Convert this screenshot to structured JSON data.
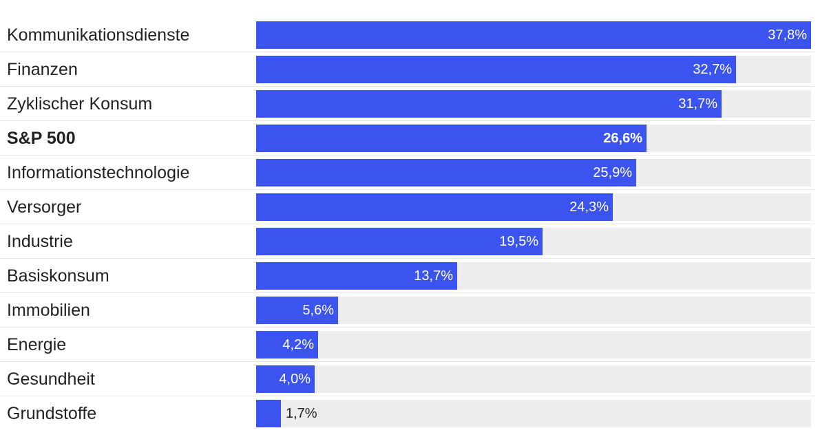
{
  "chart_data": {
    "type": "bar",
    "orientation": "horizontal",
    "categories": [
      "Kommunikationsdienste",
      "Finanzen",
      "Zyklischer Konsum",
      "S&P 500",
      "Informationstechnologie",
      "Versorger",
      "Industrie",
      "Basiskonsum",
      "Immobilien",
      "Energie",
      "Gesundheit",
      "Grundstoffe"
    ],
    "values": [
      37.8,
      32.7,
      31.7,
      26.6,
      25.9,
      24.3,
      19.5,
      13.7,
      5.6,
      4.2,
      4.0,
      1.7
    ],
    "value_labels": [
      "37,8%",
      "32,7%",
      "31,7%",
      "26,6%",
      "25,9%",
      "24,3%",
      "19,5%",
      "13,7%",
      "5,6%",
      "4,2%",
      "4,0%",
      "1,7%"
    ],
    "highlight": "S&P 500",
    "xlim": [
      0,
      37.8
    ],
    "bar_color": "#3b54ef",
    "track_color": "#ededed",
    "grid": false,
    "legend": "none"
  }
}
